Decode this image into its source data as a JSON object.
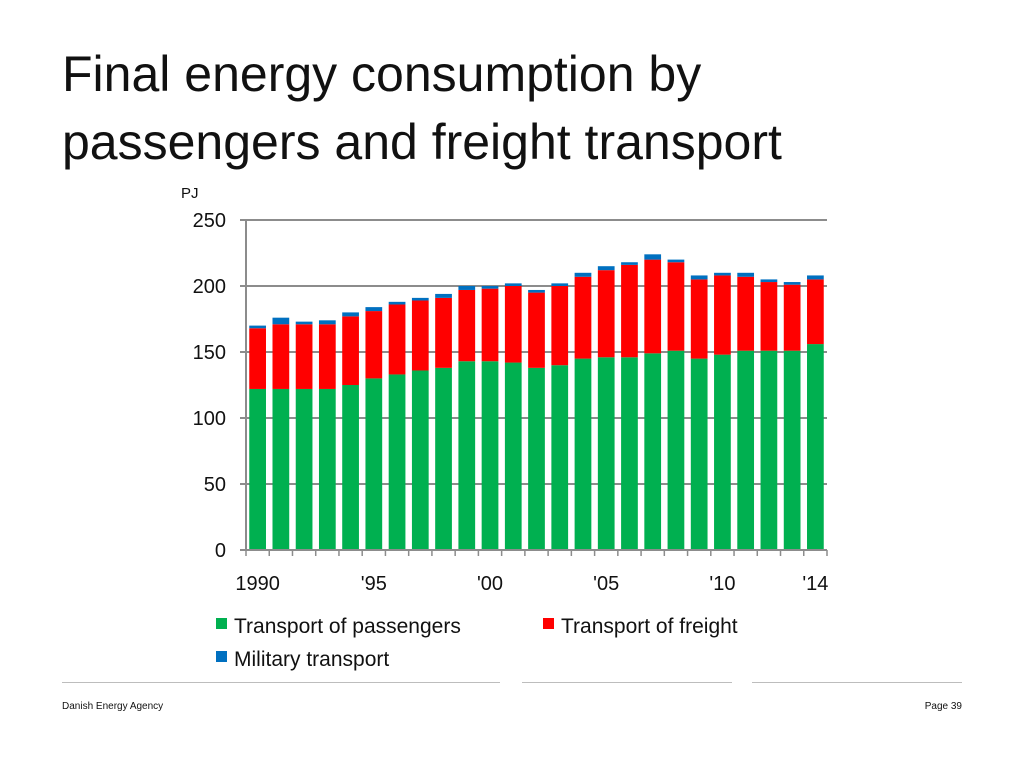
{
  "slide": {
    "title_line1": "Final energy consumption by",
    "title_line2": "passengers and freight transport",
    "footer_left": "Danish Energy Agency",
    "footer_right": "Page 39"
  },
  "colors": {
    "passengers": "#00b050",
    "freight": "#ff0000",
    "military": "#0070c0",
    "grid": "#8c8c8c"
  },
  "chart_data": {
    "type": "bar",
    "stacked": true,
    "title": "",
    "ylabel": "PJ",
    "xlabel": "",
    "ylim": [
      0,
      250
    ],
    "yticks": [
      0,
      50,
      100,
      150,
      200,
      250
    ],
    "years": [
      1990,
      1991,
      1992,
      1993,
      1994,
      1995,
      1996,
      1997,
      1998,
      1999,
      2000,
      2001,
      2002,
      2003,
      2004,
      2005,
      2006,
      2007,
      2008,
      2009,
      2010,
      2011,
      2012,
      2013,
      2014
    ],
    "xtick_labels": [
      {
        "index": 0,
        "label": "1990"
      },
      {
        "index": 5,
        "label": "'95"
      },
      {
        "index": 10,
        "label": "'00"
      },
      {
        "index": 15,
        "label": "'05"
      },
      {
        "index": 20,
        "label": "'10"
      },
      {
        "index": 24,
        "label": "'14"
      }
    ],
    "series": [
      {
        "name": "Transport of passengers",
        "color_key": "passengers",
        "values": [
          122,
          122,
          122,
          122,
          125,
          130,
          133,
          136,
          138,
          143,
          143,
          142,
          138,
          140,
          145,
          146,
          146,
          149,
          151,
          145,
          148,
          151,
          151,
          151,
          156
        ]
      },
      {
        "name": "Transport of freight",
        "color_key": "freight",
        "values": [
          46,
          49,
          49,
          49,
          52,
          51,
          53,
          53,
          53,
          54,
          55,
          58,
          57,
          60,
          62,
          66,
          70,
          71,
          67,
          60,
          60,
          56,
          52,
          50,
          49
        ]
      },
      {
        "name": "Military transport",
        "color_key": "military",
        "values": [
          2,
          5,
          2,
          3,
          3,
          3,
          2,
          2,
          3,
          3,
          2,
          2,
          2,
          2,
          3,
          3,
          2,
          4,
          2,
          3,
          2,
          3,
          2,
          2,
          3
        ]
      }
    ],
    "legend": [
      {
        "label": "Transport of passengers",
        "color_key": "passengers"
      },
      {
        "label": "Transport of freight",
        "color_key": "freight"
      },
      {
        "label": "Military transport",
        "color_key": "military"
      }
    ]
  }
}
